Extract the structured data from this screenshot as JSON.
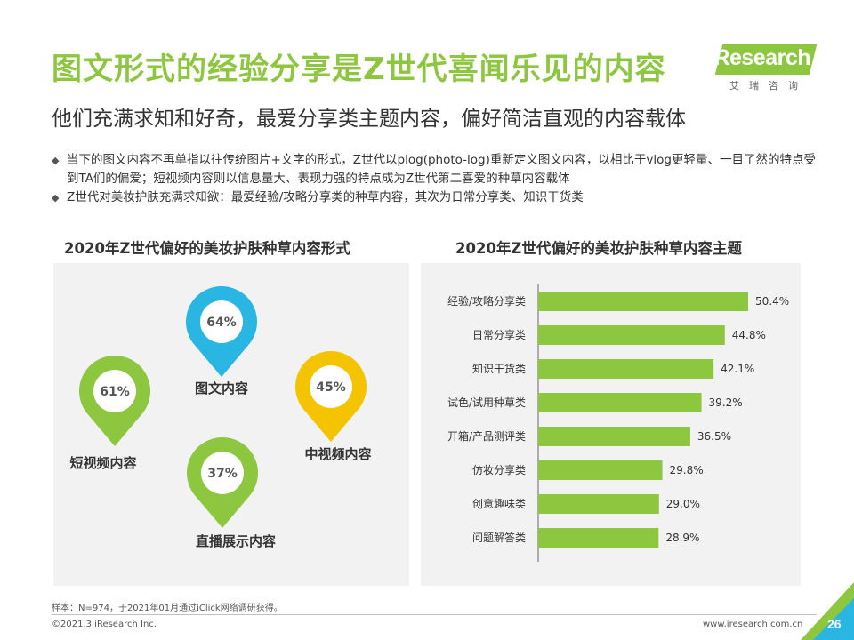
{
  "header": {
    "title": "图文形式的经验分享是Z世代喜闻乐见的内容",
    "subtitle": "他们充满求知和好奇，最爱分享类主题内容，偏好简洁直观的内容载体"
  },
  "logo": {
    "text": "iResearch",
    "cn": "艾瑞咨询"
  },
  "bullets": [
    "当下的图文内容不再单指以往传统图片+文字的形式，Z世代以plog(photo-log)重新定义图文内容，以相比于vlog更轻量、一目了然的特点受到TA们的偏爱；短视频内容则以信息量大、表现力强的特点成为Z世代第二喜爱的种草内容载体",
    "Z世代对美妆护肤充满求知欲：最爱经验/攻略分享类的种草内容，其次为日常分享类、知识干货类"
  ],
  "bullet_marker": "◆",
  "colors": {
    "accent": "#8dc63f",
    "pin_blue": "#29b6e3",
    "pin_green": "#8dc63f",
    "pin_yellow": "#f5c400",
    "bar": "#8dc63f",
    "panel_bg": "#f2f2f2"
  },
  "chart_data": [
    {
      "type": "pin",
      "title": "2020年Z世代偏好的美妆护肤种草内容形式",
      "items": [
        {
          "label": "图文内容",
          "value": "64%",
          "color": "#29b6e3"
        },
        {
          "label": "短视频内容",
          "value": "61%",
          "color": "#8dc63f"
        },
        {
          "label": "中视频内容",
          "value": "45%",
          "color": "#f5c400"
        },
        {
          "label": "直播展示内容",
          "value": "37%",
          "color": "#8dc63f"
        }
      ]
    },
    {
      "type": "bar",
      "orientation": "horizontal",
      "title": "2020年Z世代偏好的美妆护肤种草内容主题",
      "categories": [
        "经验/攻略分享类",
        "日常分享类",
        "知识干货类",
        "试色/试用种草类",
        "开箱/产品测评类",
        "仿妆分享类",
        "创意趣味类",
        "问题解答类"
      ],
      "values": [
        50.4,
        44.8,
        42.1,
        39.2,
        36.5,
        29.8,
        29.0,
        28.9
      ],
      "value_labels": [
        "50.4%",
        "44.8%",
        "42.1%",
        "39.2%",
        "36.5%",
        "29.8%",
        "29.0%",
        "28.9%"
      ],
      "xlim": [
        0,
        60
      ],
      "grid": false,
      "legend": "none"
    }
  ],
  "footer": {
    "footnote": "样本：N=974，于2021年01月通过iClick网络调研获得。",
    "copyright": "©2021.3 iResearch Inc.",
    "website": "www.iresearch.com.cn",
    "page": "26"
  }
}
